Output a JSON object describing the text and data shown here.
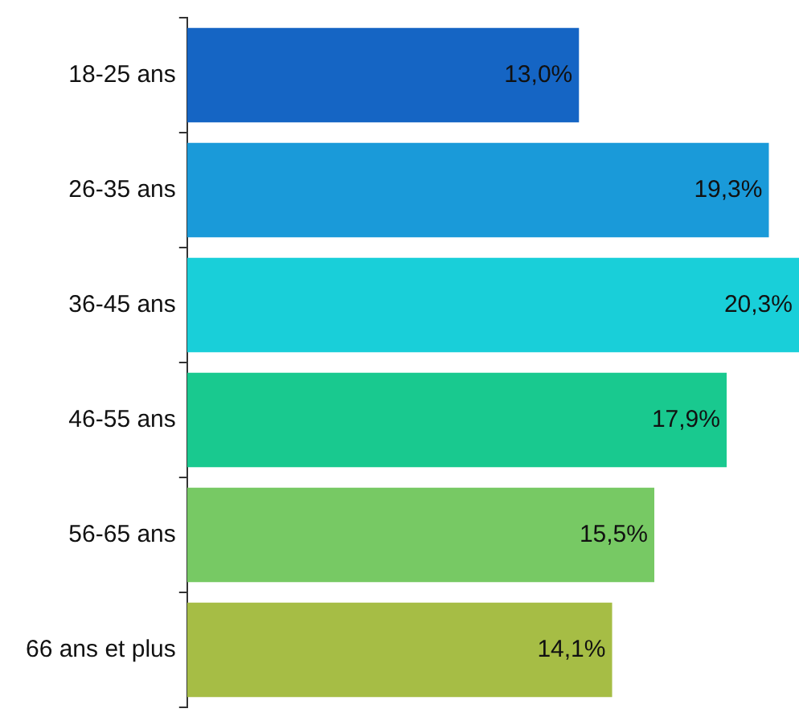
{
  "chart_data": {
    "type": "bar",
    "orientation": "horizontal",
    "categories": [
      "18-25 ans",
      "26-35 ans",
      "36-45 ans",
      "46-55 ans",
      "56-65 ans",
      "66 ans et plus"
    ],
    "values": [
      13.0,
      19.3,
      20.3,
      17.9,
      15.5,
      14.1
    ],
    "colors": [
      "#1565c4",
      "#1a9ad9",
      "#19cfd9",
      "#19c98f",
      "#77c964",
      "#a6bd45"
    ],
    "value_labels": [
      "13,0%",
      "19,3%",
      "20,3%",
      "17,9%",
      "15,5%",
      "14,1%"
    ]
  }
}
